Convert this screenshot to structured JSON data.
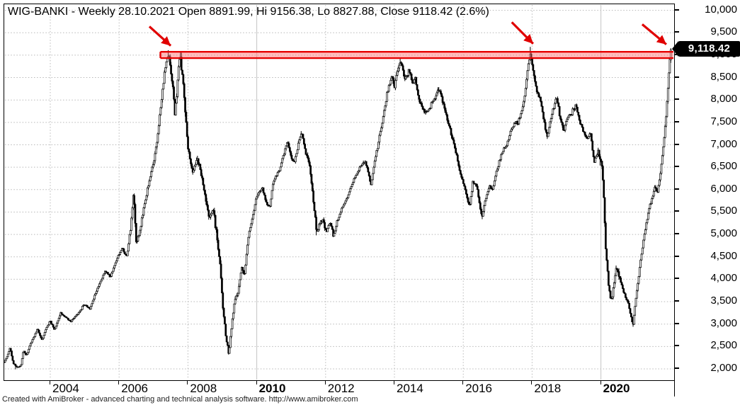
{
  "title": "WIG-BANKI - Weekly 28.10.2021 Open 8891.99, Hi 9156.38, Lo 8827.88, Close 9118.42 (2.6%)",
  "footer": "Created with AmiBroker - advanced charting and technical analysis software. http://www.amibroker.com",
  "price_tag": "9,118.42",
  "colors": {
    "background": "#ffffff",
    "bar": "#000000",
    "grid": "#b8b8b8",
    "band_line": "#e60000",
    "band_fill": "rgba(255,110,110,0.45)",
    "arrow": "#e00000",
    "tag_bg": "#000000",
    "tag_text": "#ffffff"
  },
  "chart_data": {
    "type": "candlestick",
    "symbol": "WIG-BANKI",
    "interval": "Weekly",
    "last_date": "28.10.2021",
    "last_bar": {
      "open": 8891.99,
      "high": 9156.38,
      "low": 8827.88,
      "close": 9118.42,
      "change_pct": "2.6%"
    },
    "ylim": [
      1700,
      10130
    ],
    "grid": true,
    "y_ticks": [
      {
        "v": 10000,
        "label": "10,000"
      },
      {
        "v": 9500,
        "label": "9,500"
      },
      {
        "v": 9000,
        "label": "9,000"
      },
      {
        "v": 8500,
        "label": "8,500"
      },
      {
        "v": 8000,
        "label": "8,000"
      },
      {
        "v": 7500,
        "label": "7,500"
      },
      {
        "v": 7000,
        "label": "7,000"
      },
      {
        "v": 6500,
        "label": "6,500"
      },
      {
        "v": 6000,
        "label": "6,000"
      },
      {
        "v": 5500,
        "label": "5,500"
      },
      {
        "v": 5000,
        "label": "5,000"
      },
      {
        "v": 4500,
        "label": "4,500"
      },
      {
        "v": 4000,
        "label": "4,000"
      },
      {
        "v": 3500,
        "label": "3,500"
      },
      {
        "v": 3000,
        "label": "3,000"
      },
      {
        "v": 2500,
        "label": "2,500"
      },
      {
        "v": 2000,
        "label": "2,000"
      }
    ],
    "x_ticks": [
      {
        "t": 2004,
        "label": "2004",
        "bold": false
      },
      {
        "t": 2006,
        "label": "2006",
        "bold": false
      },
      {
        "t": 2008,
        "label": "2008",
        "bold": false
      },
      {
        "t": 2010,
        "label": "2010",
        "bold": true
      },
      {
        "t": 2012,
        "label": "2012",
        "bold": false
      },
      {
        "t": 2014,
        "label": "2014",
        "bold": false
      },
      {
        "t": 2016,
        "label": "2016",
        "bold": false
      },
      {
        "t": 2018,
        "label": "2018",
        "bold": false
      },
      {
        "t": 2020,
        "label": "2020",
        "bold": true
      }
    ],
    "t_start": 2002.66,
    "t_end": 2022.04,
    "seed": 11,
    "resistance_band": {
      "v_top": 9075,
      "v_bottom": 8935,
      "t_start": 2007.2
    },
    "arrows": [
      {
        "from": [
          2006.88,
          9640
        ],
        "to": [
          2007.5,
          9210
        ]
      },
      {
        "from": [
          2017.41,
          9735
        ],
        "to": [
          2018.03,
          9255
        ]
      },
      {
        "from": [
          2021.2,
          9688
        ],
        "to": [
          2021.9,
          9240
        ]
      }
    ],
    "spikes": [
      {
        "t": 2007.44,
        "high": 9110
      },
      {
        "t": 2007.77,
        "high": 9075
      },
      {
        "t": 2017.95,
        "high": 9185
      },
      {
        "t": 2014.18,
        "high": 8940
      }
    ],
    "dips": [
      {
        "t": 2003.0,
        "low": 1990
      },
      {
        "t": 2009.19,
        "low": 2320
      },
      {
        "t": 2011.74,
        "low": 4980
      },
      {
        "t": 2012.23,
        "low": 4940
      },
      {
        "t": 2016.55,
        "low": 5340
      },
      {
        "t": 2018.44,
        "low": 7130
      },
      {
        "t": 2020.93,
        "low": 2940
      }
    ],
    "vol_zones": [
      [
        2002.66,
        2006.3,
        1.0
      ],
      [
        2006.3,
        2006.7,
        1.9
      ],
      [
        2006.7,
        2007.3,
        1.2
      ],
      [
        2007.3,
        2008.6,
        1.6
      ],
      [
        2008.6,
        2009.5,
        2.6
      ],
      [
        2009.5,
        2011.4,
        1.1
      ],
      [
        2011.4,
        2012.0,
        1.8
      ],
      [
        2012.0,
        2013.5,
        0.9
      ],
      [
        2013.5,
        2016.8,
        1.1
      ],
      [
        2016.8,
        2019.9,
        1.0
      ],
      [
        2019.9,
        2020.6,
        2.4
      ],
      [
        2020.6,
        2021.6,
        1.3
      ],
      [
        2021.6,
        2022.1,
        1.1
      ]
    ],
    "anchors": [
      [
        2002.66,
        2150
      ],
      [
        2002.75,
        2280
      ],
      [
        2002.83,
        2480
      ],
      [
        2002.92,
        2130
      ],
      [
        2003.05,
        2030
      ],
      [
        2003.15,
        2080
      ],
      [
        2003.22,
        2430
      ],
      [
        2003.3,
        2280
      ],
      [
        2003.42,
        2550
      ],
      [
        2003.55,
        2750
      ],
      [
        2003.63,
        2900
      ],
      [
        2003.75,
        2640
      ],
      [
        2003.88,
        2900
      ],
      [
        2004.0,
        3080
      ],
      [
        2004.12,
        2860
      ],
      [
        2004.3,
        3250
      ],
      [
        2004.45,
        3150
      ],
      [
        2004.6,
        3060
      ],
      [
        2004.82,
        3240
      ],
      [
        2005.0,
        3450
      ],
      [
        2005.15,
        3340
      ],
      [
        2005.4,
        3850
      ],
      [
        2005.6,
        4180
      ],
      [
        2005.75,
        4060
      ],
      [
        2005.95,
        4480
      ],
      [
        2006.1,
        4700
      ],
      [
        2006.22,
        4480
      ],
      [
        2006.35,
        5250
      ],
      [
        2006.42,
        5950
      ],
      [
        2006.5,
        4800
      ],
      [
        2006.6,
        5050
      ],
      [
        2006.72,
        5600
      ],
      [
        2006.85,
        6100
      ],
      [
        2007.0,
        6600
      ],
      [
        2007.12,
        7200
      ],
      [
        2007.25,
        8150
      ],
      [
        2007.36,
        8850
      ],
      [
        2007.44,
        9060
      ],
      [
        2007.55,
        8350
      ],
      [
        2007.62,
        7680
      ],
      [
        2007.77,
        9030
      ],
      [
        2007.87,
        8300
      ],
      [
        2007.99,
        7000
      ],
      [
        2008.12,
        6420
      ],
      [
        2008.28,
        6680
      ],
      [
        2008.42,
        6220
      ],
      [
        2008.53,
        5720
      ],
      [
        2008.63,
        5380
      ],
      [
        2008.73,
        5580
      ],
      [
        2008.84,
        4950
      ],
      [
        2008.94,
        4250
      ],
      [
        2009.02,
        3350
      ],
      [
        2009.1,
        2750
      ],
      [
        2009.19,
        2340
      ],
      [
        2009.27,
        2950
      ],
      [
        2009.36,
        3550
      ],
      [
        2009.46,
        3720
      ],
      [
        2009.56,
        4300
      ],
      [
        2009.64,
        4050
      ],
      [
        2009.76,
        5000
      ],
      [
        2009.86,
        5300
      ],
      [
        2009.97,
        5780
      ],
      [
        2010.08,
        5950
      ],
      [
        2010.17,
        6020
      ],
      [
        2010.28,
        5680
      ],
      [
        2010.38,
        5620
      ],
      [
        2010.48,
        6180
      ],
      [
        2010.58,
        6300
      ],
      [
        2010.69,
        6520
      ],
      [
        2010.79,
        6820
      ],
      [
        2010.89,
        7080
      ],
      [
        2011.0,
        6720
      ],
      [
        2011.1,
        6620
      ],
      [
        2011.2,
        7020
      ],
      [
        2011.3,
        7260
      ],
      [
        2011.41,
        6900
      ],
      [
        2011.53,
        6580
      ],
      [
        2011.63,
        5900
      ],
      [
        2011.74,
        5020
      ],
      [
        2011.82,
        5220
      ],
      [
        2011.92,
        5340
      ],
      [
        2012.02,
        5030
      ],
      [
        2012.13,
        5300
      ],
      [
        2012.23,
        4960
      ],
      [
        2012.33,
        5280
      ],
      [
        2012.44,
        5520
      ],
      [
        2012.54,
        5700
      ],
      [
        2012.64,
        5820
      ],
      [
        2012.74,
        6080
      ],
      [
        2012.85,
        6280
      ],
      [
        2012.95,
        6420
      ],
      [
        2013.05,
        6560
      ],
      [
        2013.15,
        6640
      ],
      [
        2013.26,
        6320
      ],
      [
        2013.32,
        6080
      ],
      [
        2013.42,
        6600
      ],
      [
        2013.57,
        7220
      ],
      [
        2013.67,
        7620
      ],
      [
        2013.79,
        8180
      ],
      [
        2013.92,
        8540
      ],
      [
        2014.0,
        8260
      ],
      [
        2014.08,
        8620
      ],
      [
        2014.18,
        8900
      ],
      [
        2014.29,
        8460
      ],
      [
        2014.43,
        8640
      ],
      [
        2014.53,
        8340
      ],
      [
        2014.6,
        8520
      ],
      [
        2014.7,
        8060
      ],
      [
        2014.8,
        7820
      ],
      [
        2014.9,
        7700
      ],
      [
        2015.01,
        7820
      ],
      [
        2015.11,
        7980
      ],
      [
        2015.21,
        8120
      ],
      [
        2015.32,
        8240
      ],
      [
        2015.42,
        7900
      ],
      [
        2015.52,
        7620
      ],
      [
        2015.63,
        7300
      ],
      [
        2015.73,
        7000
      ],
      [
        2015.83,
        6680
      ],
      [
        2015.93,
        6320
      ],
      [
        2016.04,
        6080
      ],
      [
        2016.14,
        5720
      ],
      [
        2016.18,
        5580
      ],
      [
        2016.28,
        6180
      ],
      [
        2016.39,
        6080
      ],
      [
        2016.47,
        5700
      ],
      [
        2016.55,
        5380
      ],
      [
        2016.63,
        5720
      ],
      [
        2016.76,
        6080
      ],
      [
        2016.86,
        6020
      ],
      [
        2016.96,
        6380
      ],
      [
        2017.07,
        6680
      ],
      [
        2017.17,
        6880
      ],
      [
        2017.27,
        7000
      ],
      [
        2017.37,
        7280
      ],
      [
        2017.48,
        7480
      ],
      [
        2017.58,
        7480
      ],
      [
        2017.68,
        7680
      ],
      [
        2017.78,
        8080
      ],
      [
        2017.87,
        8680
      ],
      [
        2017.95,
        9040
      ],
      [
        2018.03,
        8680
      ],
      [
        2018.11,
        8280
      ],
      [
        2018.24,
        7980
      ],
      [
        2018.36,
        7480
      ],
      [
        2018.44,
        7160
      ],
      [
        2018.57,
        7680
      ],
      [
        2018.71,
        8080
      ],
      [
        2018.81,
        7620
      ],
      [
        2018.92,
        7320
      ],
      [
        2019.02,
        7580
      ],
      [
        2019.14,
        7700
      ],
      [
        2019.27,
        7880
      ],
      [
        2019.39,
        7500
      ],
      [
        2019.49,
        7300
      ],
      [
        2019.59,
        7120
      ],
      [
        2019.7,
        7260
      ],
      [
        2019.8,
        6620
      ],
      [
        2019.9,
        6820
      ],
      [
        2020.0,
        6680
      ],
      [
        2020.07,
        6150
      ],
      [
        2020.13,
        4850
      ],
      [
        2020.21,
        3950
      ],
      [
        2020.29,
        3520
      ],
      [
        2020.37,
        3820
      ],
      [
        2020.45,
        4280
      ],
      [
        2020.54,
        4020
      ],
      [
        2020.62,
        3820
      ],
      [
        2020.7,
        3620
      ],
      [
        2020.78,
        3520
      ],
      [
        2020.86,
        3220
      ],
      [
        2020.93,
        2960
      ],
      [
        2020.99,
        3420
      ],
      [
        2021.07,
        3900
      ],
      [
        2021.15,
        4400
      ],
      [
        2021.24,
        4900
      ],
      [
        2021.32,
        5280
      ],
      [
        2021.4,
        5580
      ],
      [
        2021.48,
        5780
      ],
      [
        2021.57,
        6080
      ],
      [
        2021.65,
        5950
      ],
      [
        2021.73,
        6380
      ],
      [
        2021.81,
        6980
      ],
      [
        2021.89,
        7580
      ],
      [
        2021.95,
        8320
      ],
      [
        2022.0,
        8900
      ],
      [
        2022.04,
        9118
      ]
    ]
  }
}
